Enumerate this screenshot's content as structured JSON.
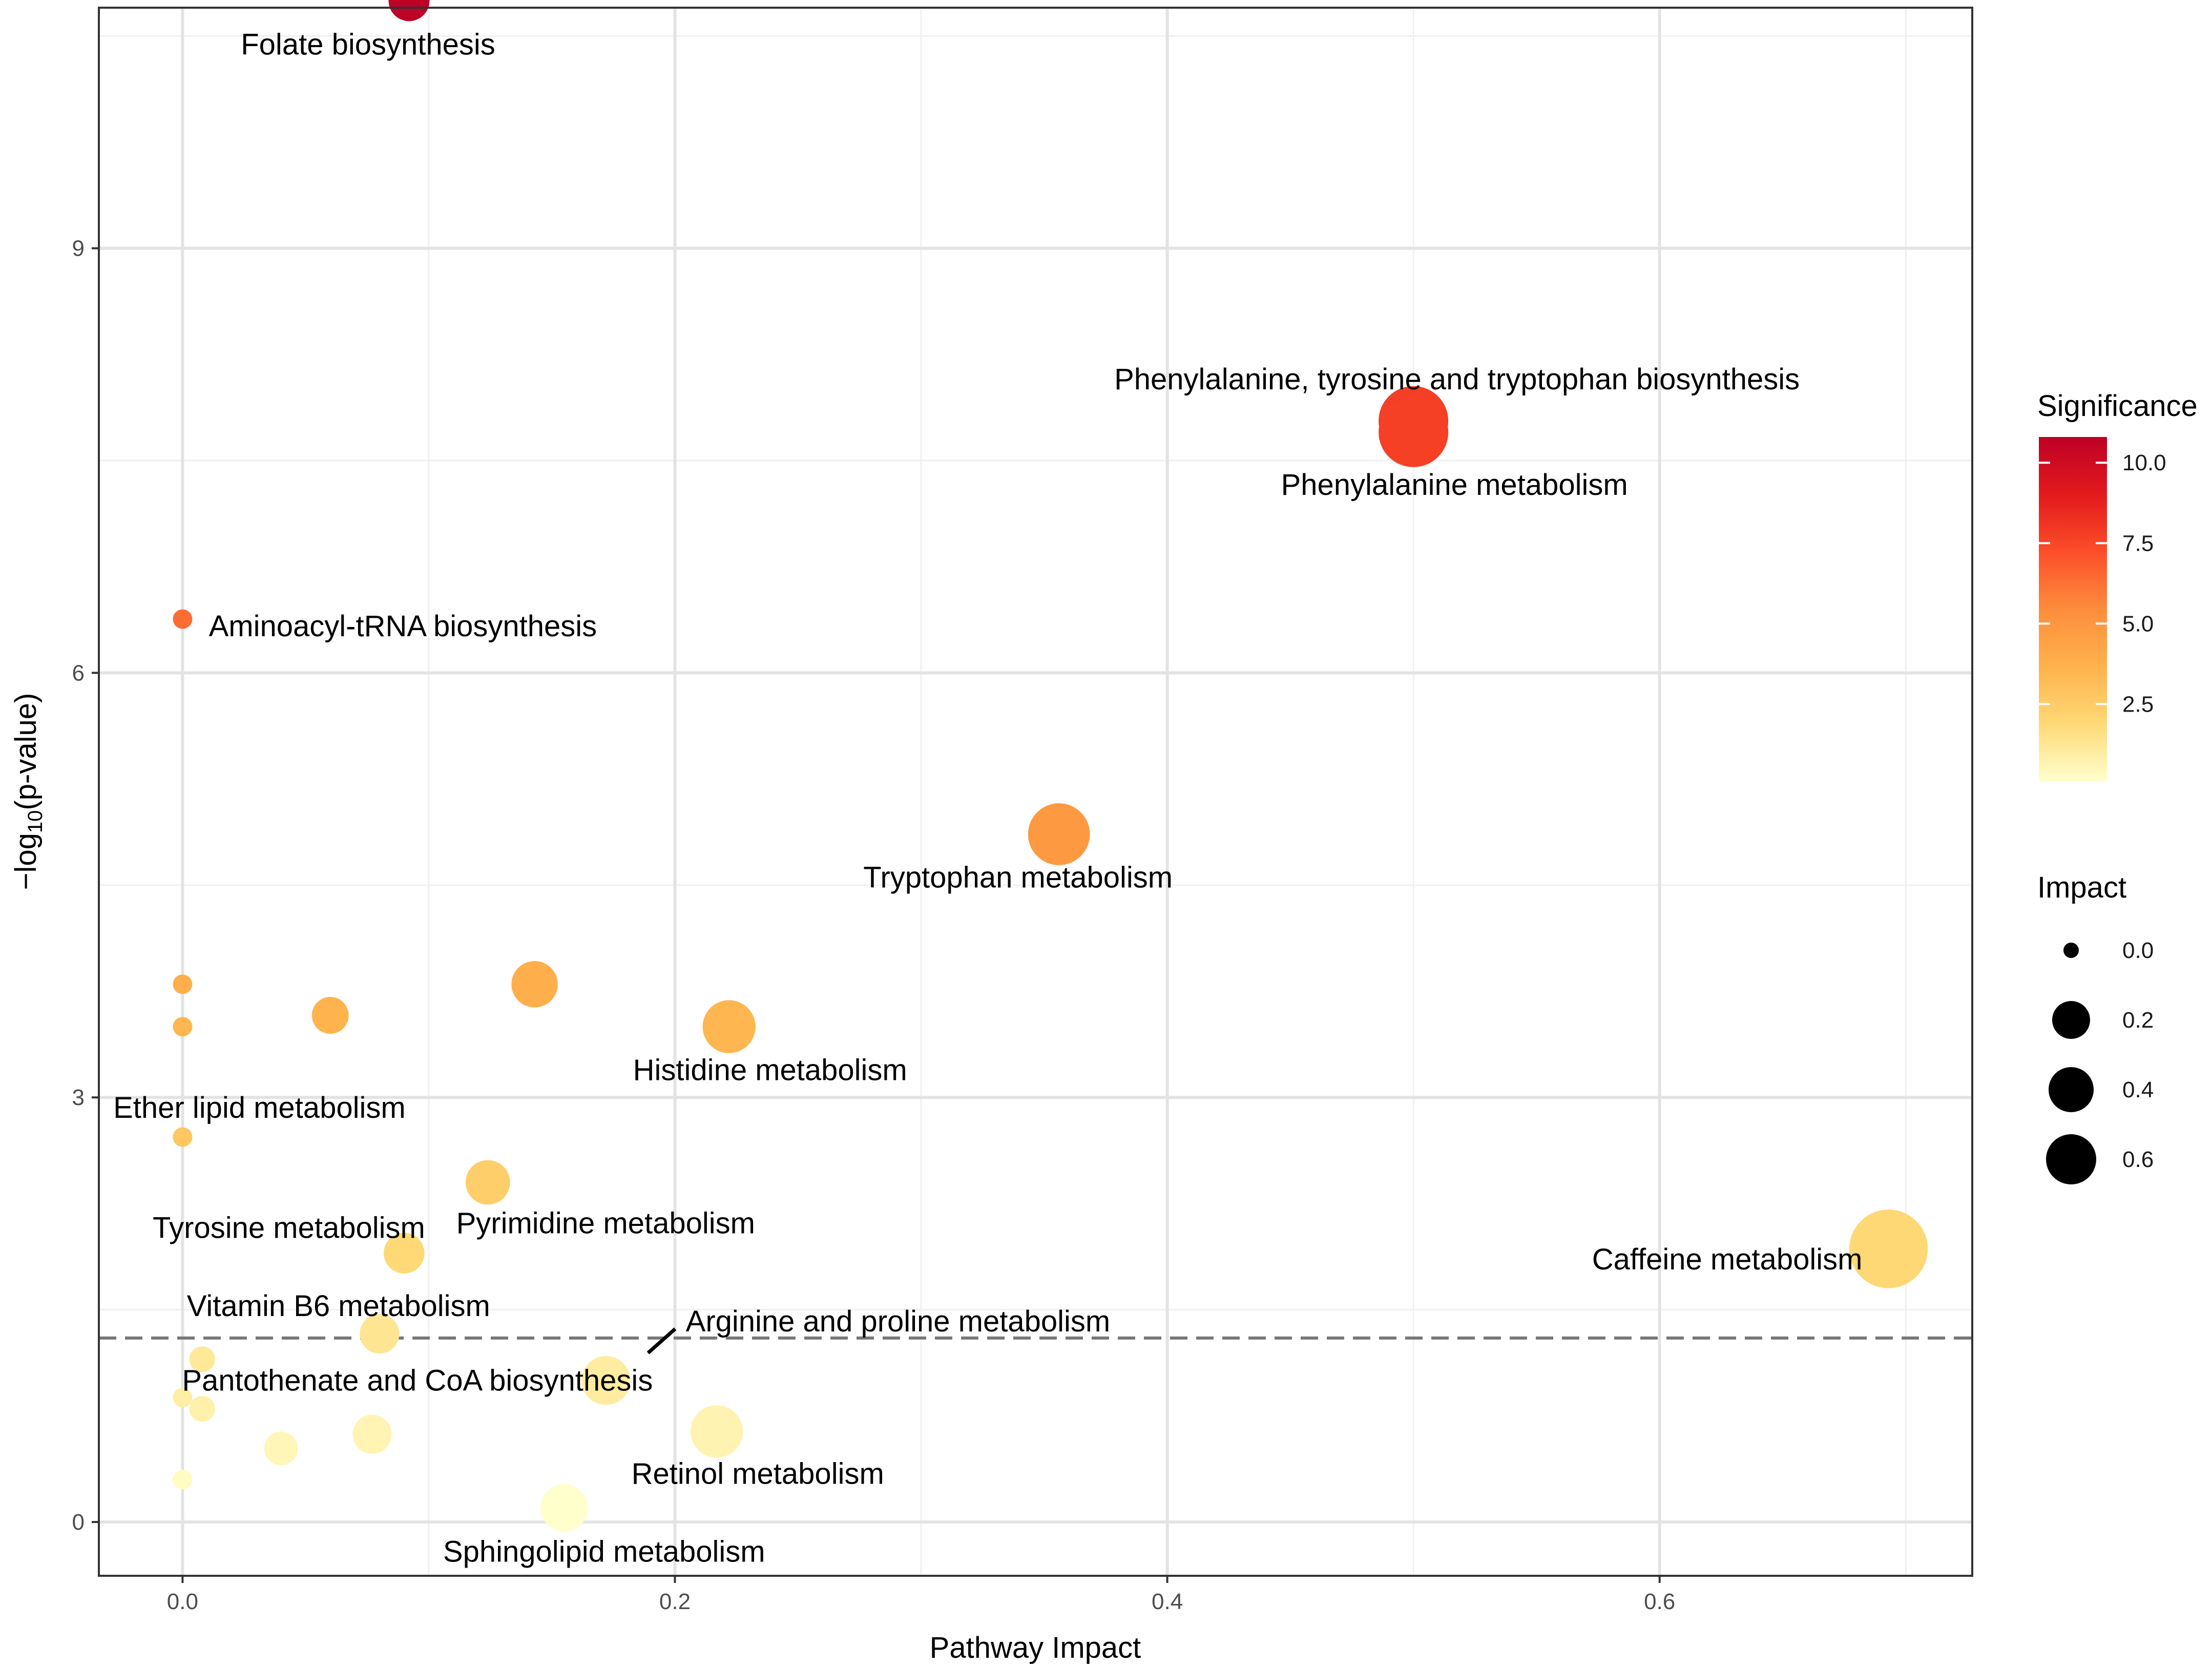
{
  "chart_data": {
    "type": "scatter",
    "xlabel": "Pathway Impact",
    "ylabel_prefix": "−log",
    "ylabel_sub": "10",
    "ylabel_suffix": "(p-value)",
    "xlim": [
      -0.034,
      0.727
    ],
    "ylim": [
      -0.38,
      10.7
    ],
    "x_ticks": [
      0.0,
      0.2,
      0.4,
      0.6
    ],
    "x_tick_labels": [
      "0.0",
      "0.2",
      "0.4",
      "0.6"
    ],
    "y_ticks": [
      0,
      3,
      6,
      9
    ],
    "y_tick_labels": [
      "0",
      "3",
      "6",
      "9"
    ],
    "threshold_line_y": 1.3,
    "color_scale": {
      "title": "Significance",
      "min": 0.1,
      "max": 10.8,
      "ticks": [
        2.5,
        5.0,
        7.5,
        10.0
      ],
      "tick_labels": [
        "2.5",
        "5.0",
        "7.5",
        "10.0"
      ],
      "stops": [
        "#ffffcc",
        "#fed976",
        "#feb24c",
        "#fd8d3c",
        "#fc4e2a",
        "#e31a1c",
        "#bd0026"
      ]
    },
    "size_scale": {
      "title": "Impact",
      "values": [
        0.0,
        0.2,
        0.4,
        0.6
      ],
      "labels": [
        "0.0",
        "0.2",
        "0.4",
        "0.6"
      ]
    },
    "points": [
      {
        "x": 0.092,
        "y": 10.75,
        "label": "Folate biosynthesis"
      },
      {
        "x": 0.5,
        "y": 7.78,
        "label": "Phenylalanine, tyrosine and tryptophan biosynthesis"
      },
      {
        "x": 0.5,
        "y": 7.7,
        "label": "Phenylalanine metabolism"
      },
      {
        "x": 0.0,
        "y": 6.38,
        "label": "Aminoacyl-tRNA biosynthesis"
      },
      {
        "x": 0.356,
        "y": 4.86,
        "label": "Tryptophan metabolism"
      },
      {
        "x": 0.143,
        "y": 3.8,
        "label": ""
      },
      {
        "x": 0.06,
        "y": 3.58,
        "label": ""
      },
      {
        "x": 0.0,
        "y": 3.8,
        "label": ""
      },
      {
        "x": 0.0,
        "y": 3.5,
        "label": ""
      },
      {
        "x": 0.222,
        "y": 3.5,
        "label": "Histidine metabolism"
      },
      {
        "x": 0.0,
        "y": 2.72,
        "label": "Ether lipid metabolism"
      },
      {
        "x": 0.124,
        "y": 2.4,
        "label": "Pyrimidine metabolism"
      },
      {
        "x": 0.09,
        "y": 1.9,
        "label": "Tyrosine metabolism"
      },
      {
        "x": 0.693,
        "y": 1.93,
        "label": "Caffeine metabolism"
      },
      {
        "x": 0.08,
        "y": 1.33,
        "label": "Vitamin B6 metabolism"
      },
      {
        "x": 0.172,
        "y": 1.0,
        "label": "Arginine and proline metabolism"
      },
      {
        "x": 0.008,
        "y": 1.15,
        "label": "Pantothenate and CoA biosynthesis"
      },
      {
        "x": 0.0,
        "y": 0.88,
        "label": ""
      },
      {
        "x": 0.008,
        "y": 0.8,
        "label": ""
      },
      {
        "x": 0.04,
        "y": 0.52,
        "label": ""
      },
      {
        "x": 0.077,
        "y": 0.62,
        "label": ""
      },
      {
        "x": 0.217,
        "y": 0.64,
        "label": "Retinol metabolism"
      },
      {
        "x": 0.0,
        "y": 0.3,
        "label": ""
      },
      {
        "x": 0.155,
        "y": 0.1,
        "label": "Sphingolipid metabolism"
      }
    ]
  }
}
